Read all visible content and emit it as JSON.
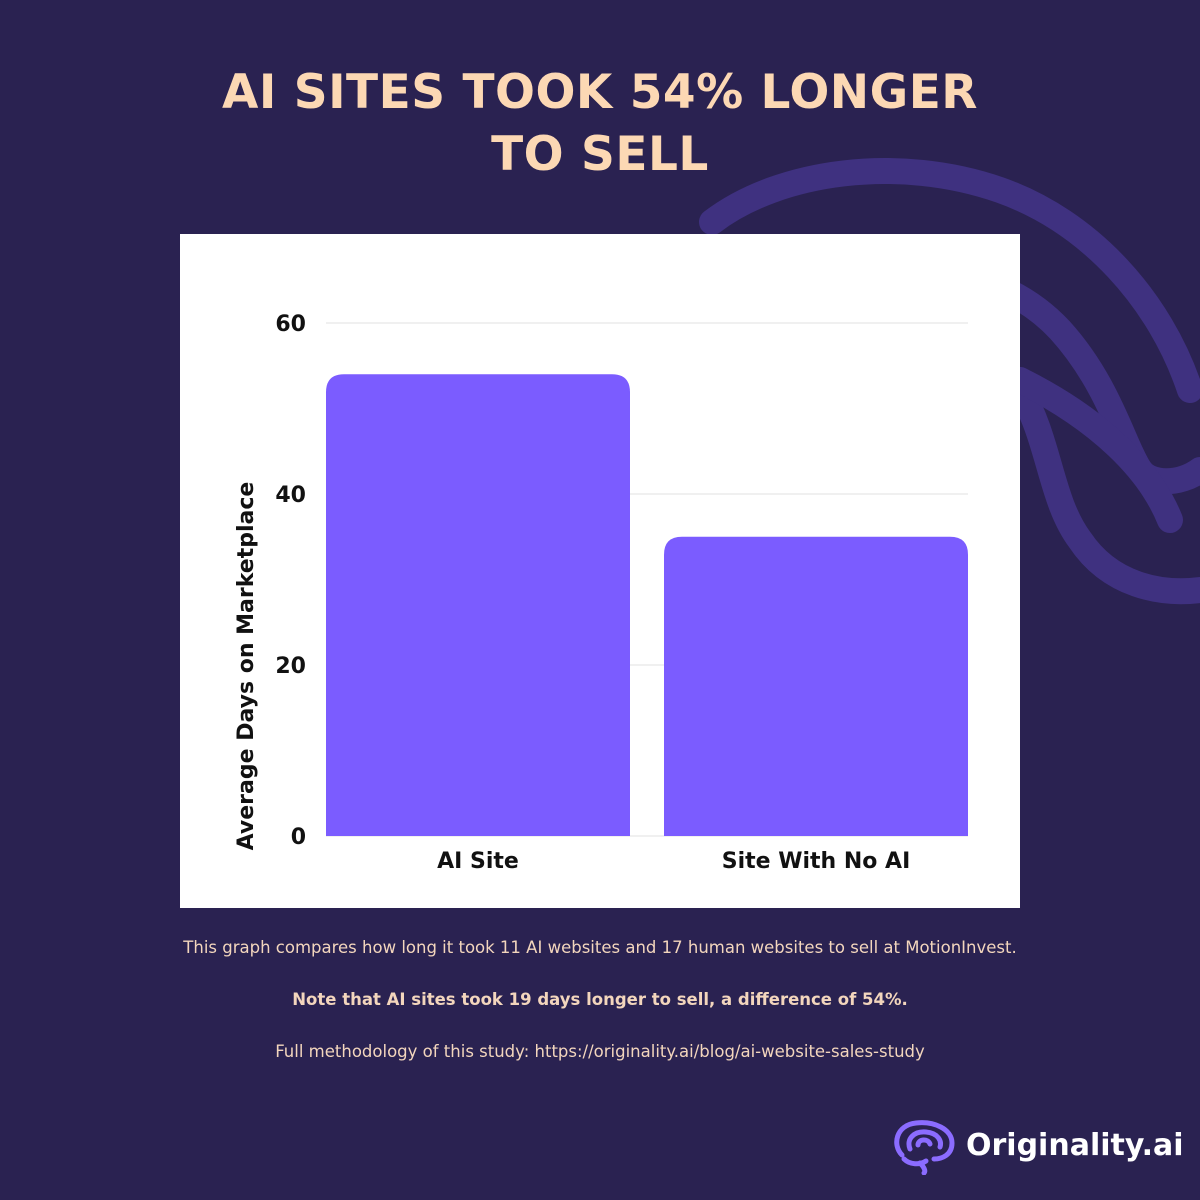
{
  "headline": {
    "line1": "AI SITES TOOK 54% LONGER",
    "line2": "TO SELL"
  },
  "chart_data": {
    "type": "bar",
    "categories": [
      "AI Site",
      "Site With No AI"
    ],
    "values": [
      54,
      35
    ],
    "ylabel": "Average Days on Marketplace",
    "ylim": [
      0,
      60
    ],
    "yticks": [
      "0",
      "20",
      "40",
      "60"
    ],
    "grid": true,
    "bar_color": "#7b5cff"
  },
  "captions": {
    "line1": "This graph compares how long it took 11 AI websites and 17 human websites to sell at MotionInvest.",
    "line2": "Note that AI sites took 19 days longer to sell, a difference of 54%.",
    "line3": "Full methodology of this study: https://originality.ai/blog/ai-website-sales-study"
  },
  "brand": {
    "name": "Originality.ai",
    "icon": "brain-icon"
  },
  "colors": {
    "background": "#2a2251",
    "headline": "#fcd8b4",
    "caption": "#f3d6bd",
    "accent": "#7b5cff"
  }
}
